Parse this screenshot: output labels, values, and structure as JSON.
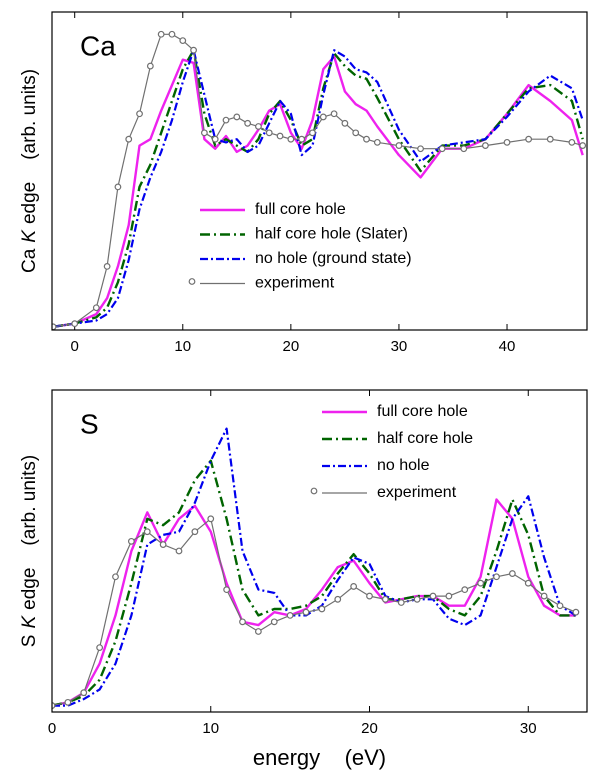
{
  "chart_data": [
    {
      "type": "line",
      "panel_label": "Ca",
      "ylabel": [
        "Ca",
        "K",
        "edge",
        "(arb. units)"
      ],
      "xlim": [
        -2.1,
        47.4
      ],
      "xticks": [
        0,
        10,
        20,
        30,
        40
      ],
      "ylim": [
        0,
        1
      ],
      "legend": "center",
      "x": [
        -2,
        0,
        2,
        3,
        4,
        5,
        6,
        7,
        8,
        9,
        10,
        11,
        12,
        13,
        14,
        15,
        16,
        17,
        18,
        19,
        20,
        21,
        22,
        23,
        24,
        25,
        26,
        27,
        28,
        30,
        32,
        34,
        36,
        38,
        40,
        42,
        44,
        46,
        47
      ],
      "series": [
        {
          "name": "full core hole",
          "color": "#ee22ee",
          "linestyle": "solid",
          "values": [
            0.01,
            0.02,
            0.05,
            0.1,
            0.2,
            0.33,
            0.58,
            0.6,
            0.69,
            0.77,
            0.85,
            0.84,
            0.6,
            0.57,
            0.61,
            0.56,
            0.58,
            0.63,
            0.69,
            0.71,
            0.62,
            0.57,
            0.66,
            0.82,
            0.86,
            0.75,
            0.71,
            0.69,
            0.64,
            0.55,
            0.48,
            0.57,
            0.57,
            0.6,
            0.68,
            0.77,
            0.72,
            0.66,
            0.55
          ]
        },
        {
          "name": "half core hole (Slater)",
          "color": "#006400",
          "linestyle": "dashdot",
          "values": [
            0.01,
            0.02,
            0.04,
            0.07,
            0.15,
            0.27,
            0.45,
            0.52,
            0.62,
            0.72,
            0.82,
            0.88,
            0.68,
            0.58,
            0.6,
            0.58,
            0.56,
            0.6,
            0.68,
            0.72,
            0.66,
            0.58,
            0.6,
            0.76,
            0.87,
            0.83,
            0.8,
            0.79,
            0.73,
            0.6,
            0.5,
            0.58,
            0.58,
            0.6,
            0.68,
            0.76,
            0.77,
            0.72,
            0.6
          ]
        },
        {
          "name": "no hole (ground state)",
          "color": "#0000ee",
          "linestyle": "dashdot2",
          "values": [
            0.01,
            0.02,
            0.03,
            0.05,
            0.1,
            0.22,
            0.38,
            0.48,
            0.56,
            0.66,
            0.78,
            0.88,
            0.74,
            0.6,
            0.59,
            0.6,
            0.56,
            0.58,
            0.65,
            0.72,
            0.68,
            0.55,
            0.58,
            0.74,
            0.88,
            0.86,
            0.82,
            0.81,
            0.78,
            0.63,
            0.53,
            0.58,
            0.59,
            0.6,
            0.67,
            0.75,
            0.8,
            0.76,
            0.66
          ]
        },
        {
          "name": "experiment",
          "color": "#707070",
          "linestyle": "thin",
          "marker": "o",
          "values": [
            0.01,
            0.02,
            0.07,
            0.2,
            0.45,
            0.6,
            0.68,
            0.83,
            0.93,
            0.93,
            0.91,
            0.88,
            0.62,
            0.6,
            0.66,
            0.67,
            0.65,
            0.64,
            0.62,
            0.61,
            0.6,
            0.6,
            0.62,
            0.67,
            0.68,
            0.65,
            0.62,
            0.6,
            0.59,
            0.58,
            0.57,
            0.57,
            0.57,
            0.58,
            0.59,
            0.6,
            0.6,
            0.59,
            0.58
          ]
        }
      ]
    },
    {
      "type": "line",
      "panel_label": "S",
      "ylabel": [
        "S",
        "K",
        "edge",
        "(arb. units)"
      ],
      "xlabel": "energy    (eV)",
      "xlim": [
        0,
        33.7
      ],
      "xticks": [
        0,
        10,
        20,
        30
      ],
      "ylim": [
        0,
        1
      ],
      "legend": "upper-right",
      "x": [
        0,
        1,
        2,
        3,
        4,
        5,
        6,
        7,
        8,
        9,
        10,
        11,
        12,
        13,
        14,
        15,
        16,
        17,
        18,
        19,
        20,
        21,
        22,
        23,
        24,
        25,
        26,
        27,
        28,
        29,
        30,
        31,
        32,
        33
      ],
      "series": [
        {
          "name": "full core hole",
          "color": "#ee22ee",
          "linestyle": "solid",
          "values": [
            0.02,
            0.03,
            0.06,
            0.15,
            0.3,
            0.5,
            0.62,
            0.52,
            0.6,
            0.64,
            0.56,
            0.4,
            0.28,
            0.27,
            0.31,
            0.3,
            0.32,
            0.38,
            0.45,
            0.47,
            0.4,
            0.34,
            0.35,
            0.36,
            0.36,
            0.33,
            0.33,
            0.42,
            0.66,
            0.6,
            0.42,
            0.33,
            0.3,
            0.3
          ]
        },
        {
          "name": "half core hole",
          "color": "#006400",
          "linestyle": "dashdot",
          "values": [
            0.02,
            0.03,
            0.05,
            0.1,
            0.22,
            0.4,
            0.6,
            0.58,
            0.62,
            0.72,
            0.78,
            0.6,
            0.38,
            0.3,
            0.32,
            0.32,
            0.33,
            0.36,
            0.43,
            0.49,
            0.43,
            0.35,
            0.35,
            0.36,
            0.36,
            0.32,
            0.3,
            0.36,
            0.5,
            0.66,
            0.55,
            0.36,
            0.3,
            0.3
          ]
        },
        {
          "name": "no hole",
          "color": "#0000ee",
          "linestyle": "dashdot2",
          "values": [
            0.02,
            0.02,
            0.04,
            0.07,
            0.15,
            0.3,
            0.52,
            0.55,
            0.56,
            0.65,
            0.78,
            0.88,
            0.5,
            0.38,
            0.37,
            0.3,
            0.3,
            0.33,
            0.41,
            0.48,
            0.46,
            0.36,
            0.34,
            0.35,
            0.35,
            0.29,
            0.27,
            0.3,
            0.45,
            0.6,
            0.67,
            0.48,
            0.33,
            0.3
          ]
        },
        {
          "name": "experiment",
          "color": "#707070",
          "linestyle": "thin",
          "marker": "o",
          "values": [
            0.02,
            0.03,
            0.06,
            0.2,
            0.42,
            0.53,
            0.56,
            0.52,
            0.5,
            0.56,
            0.6,
            0.38,
            0.28,
            0.25,
            0.28,
            0.3,
            0.31,
            0.32,
            0.35,
            0.39,
            0.36,
            0.35,
            0.34,
            0.35,
            0.36,
            0.36,
            0.38,
            0.4,
            0.42,
            0.43,
            0.4,
            0.36,
            0.33,
            0.31
          ]
        }
      ]
    }
  ]
}
